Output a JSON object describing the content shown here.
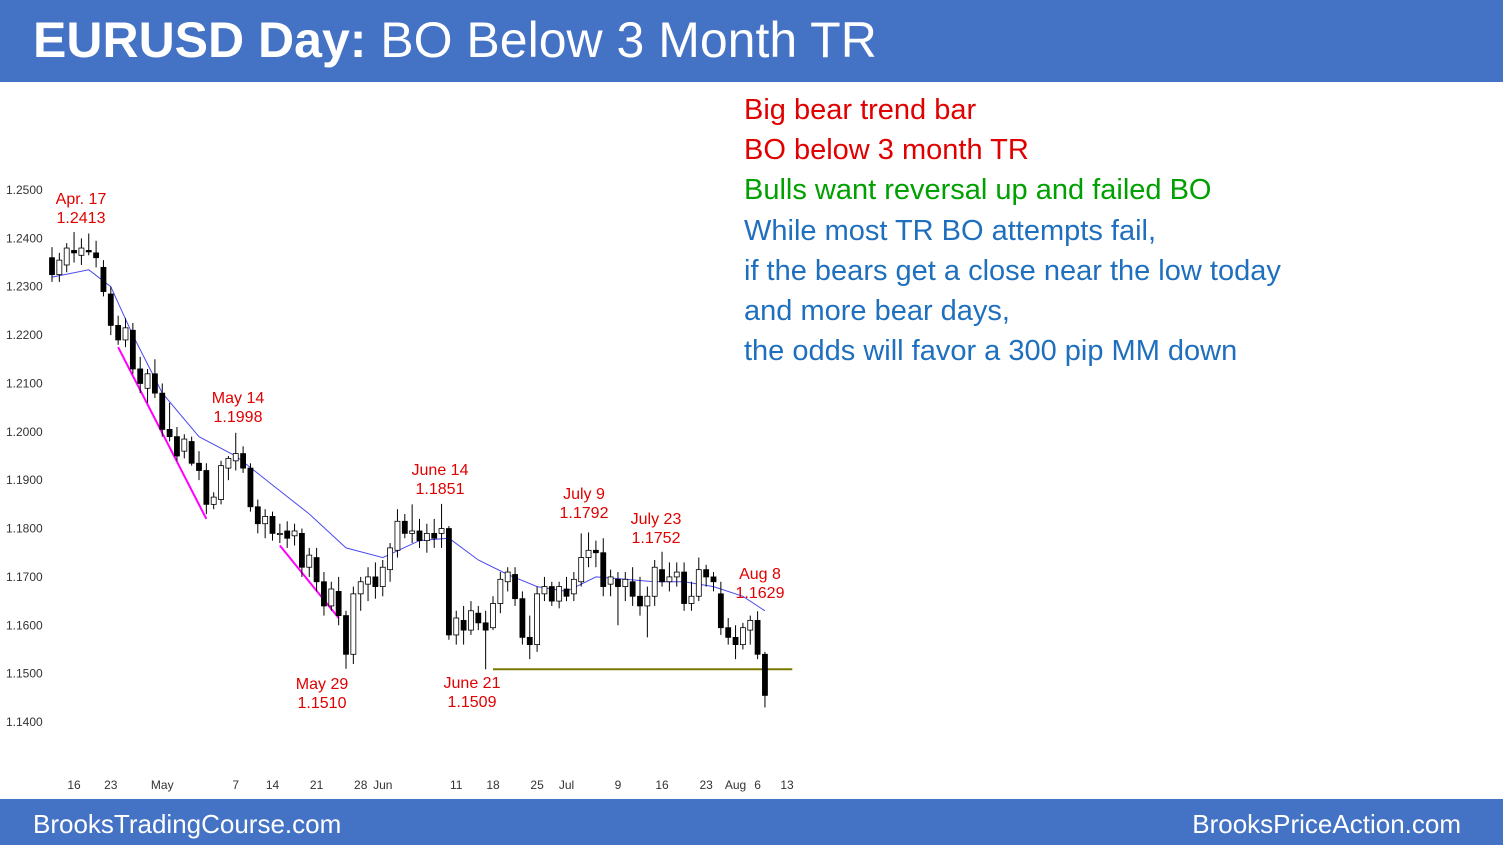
{
  "header": {
    "title_bold": "EURUSD Day:",
    "title_rest": " BO Below 3 Month TR"
  },
  "footer": {
    "left": "BrooksTradingCourse.com",
    "right": "BrooksPriceAction.com"
  },
  "notes": [
    {
      "text": "Big bear trend bar",
      "color": "#e00000"
    },
    {
      "text": "BO below 3 month TR",
      "color": "#e00000"
    },
    {
      "text": "Bulls want reversal up and failed BO",
      "color": "#00a000"
    },
    {
      "text": "While most TR BO attempts fail,",
      "color": "#1f6fbf"
    },
    {
      "text": "if the bears get a close near the low today",
      "color": "#1f6fbf"
    },
    {
      "text": "and more bear days,",
      "color": "#1f6fbf"
    },
    {
      "text": "the odds will favor a 300 pip MM down",
      "color": "#1f6fbf"
    }
  ],
  "chart_data": {
    "type": "candlestick",
    "title": "EURUSD Day",
    "ylim": [
      1.14,
      1.25
    ],
    "y_ticks": [
      "1.2500",
      "1.2400",
      "1.2300",
      "1.2200",
      "1.2100",
      "1.2000",
      "1.1900",
      "1.1800",
      "1.1700",
      "1.1600",
      "1.1500",
      "1.1400"
    ],
    "x_ticks": [
      "16",
      "23",
      "May",
      "7",
      "14",
      "21",
      "28",
      "Jun",
      "11",
      "18",
      "25",
      "Jul",
      "9",
      "16",
      "23",
      "Aug",
      "6",
      "13"
    ],
    "colors": {
      "bull_fill": "#ffffff",
      "bear_fill": "#000000",
      "ema": "#4a4af0",
      "trendline": "#ff00ff",
      "support": "#7a7a00",
      "annotation": "#e00000"
    },
    "candles": [
      [
        1.236,
        1.2382,
        1.231,
        1.2325
      ],
      [
        1.2325,
        1.237,
        1.231,
        1.2355
      ],
      [
        1.2345,
        1.239,
        1.233,
        1.238
      ],
      [
        1.2375,
        1.2413,
        1.235,
        1.237
      ],
      [
        1.2365,
        1.24,
        1.2345,
        1.238
      ],
      [
        1.2375,
        1.241,
        1.2365,
        1.2372
      ],
      [
        1.237,
        1.2395,
        1.234,
        1.236
      ],
      [
        1.234,
        1.2355,
        1.228,
        1.229
      ],
      [
        1.2285,
        1.23,
        1.22,
        1.222
      ],
      [
        1.222,
        1.224,
        1.218,
        1.219
      ],
      [
        1.219,
        1.2235,
        1.2175,
        1.2215
      ],
      [
        1.221,
        1.2225,
        1.212,
        1.213
      ],
      [
        1.213,
        1.2155,
        1.208,
        1.21
      ],
      [
        1.209,
        1.213,
        1.206,
        1.212
      ],
      [
        1.212,
        1.215,
        1.207,
        1.208
      ],
      [
        1.208,
        1.21,
        1.199,
        1.2005
      ],
      [
        1.2005,
        1.206,
        1.198,
        1.199
      ],
      [
        1.199,
        1.201,
        1.194,
        1.195
      ],
      [
        1.196,
        1.1995,
        1.1945,
        1.1985
      ],
      [
        1.198,
        1.199,
        1.193,
        1.1935
      ],
      [
        1.1935,
        1.196,
        1.19,
        1.192
      ],
      [
        1.192,
        1.1935,
        1.183,
        1.185
      ],
      [
        1.185,
        1.1875,
        1.184,
        1.1865
      ],
      [
        1.186,
        1.194,
        1.185,
        1.193
      ],
      [
        1.1925,
        1.195,
        1.19,
        1.1945
      ],
      [
        1.194,
        1.1998,
        1.192,
        1.1955
      ],
      [
        1.1955,
        1.197,
        1.1915,
        1.1925
      ],
      [
        1.1925,
        1.1935,
        1.1835,
        1.1845
      ],
      [
        1.1845,
        1.186,
        1.179,
        1.181
      ],
      [
        1.181,
        1.184,
        1.178,
        1.1825
      ],
      [
        1.1825,
        1.1835,
        1.1775,
        1.179
      ],
      [
        1.179,
        1.181,
        1.177,
        1.179
      ],
      [
        1.1795,
        1.1815,
        1.176,
        1.178
      ],
      [
        1.1785,
        1.181,
        1.1765,
        1.1795
      ],
      [
        1.179,
        1.18,
        1.17,
        1.172
      ],
      [
        1.172,
        1.176,
        1.17,
        1.1745
      ],
      [
        1.174,
        1.176,
        1.167,
        1.169
      ],
      [
        1.169,
        1.171,
        1.162,
        1.164
      ],
      [
        1.164,
        1.169,
        1.163,
        1.1675
      ],
      [
        1.167,
        1.17,
        1.16,
        1.162
      ],
      [
        1.162,
        1.163,
        1.151,
        1.154
      ],
      [
        1.154,
        1.168,
        1.152,
        1.1665
      ],
      [
        1.1665,
        1.17,
        1.163,
        1.169
      ],
      [
        1.1685,
        1.172,
        1.165,
        1.17
      ],
      [
        1.17,
        1.173,
        1.1655,
        1.168
      ],
      [
        1.168,
        1.1735,
        1.166,
        1.172
      ],
      [
        1.1715,
        1.177,
        1.169,
        1.176
      ],
      [
        1.1755,
        1.184,
        1.174,
        1.1815
      ],
      [
        1.1815,
        1.183,
        1.178,
        1.179
      ],
      [
        1.179,
        1.185,
        1.177,
        1.1795
      ],
      [
        1.1795,
        1.182,
        1.176,
        1.1775
      ],
      [
        1.1775,
        1.181,
        1.175,
        1.179
      ],
      [
        1.179,
        1.182,
        1.176,
        1.178
      ],
      [
        1.179,
        1.1851,
        1.176,
        1.18
      ],
      [
        1.18,
        1.1805,
        1.157,
        1.158
      ],
      [
        1.158,
        1.163,
        1.156,
        1.1615
      ],
      [
        1.161,
        1.164,
        1.156,
        1.159
      ],
      [
        1.159,
        1.165,
        1.158,
        1.163
      ],
      [
        1.1625,
        1.164,
        1.159,
        1.1605
      ],
      [
        1.1605,
        1.163,
        1.1509,
        1.159
      ],
      [
        1.1595,
        1.166,
        1.159,
        1.1645
      ],
      [
        1.1645,
        1.171,
        1.1625,
        1.1695
      ],
      [
        1.169,
        1.172,
        1.167,
        1.171
      ],
      [
        1.1705,
        1.172,
        1.164,
        1.1655
      ],
      [
        1.1655,
        1.167,
        1.156,
        1.1575
      ],
      [
        1.1575,
        1.162,
        1.153,
        1.156
      ],
      [
        1.156,
        1.168,
        1.1545,
        1.1665
      ],
      [
        1.1665,
        1.17,
        1.165,
        1.168
      ],
      [
        1.168,
        1.169,
        1.164,
        1.165
      ],
      [
        1.165,
        1.169,
        1.1635,
        1.168
      ],
      [
        1.1675,
        1.17,
        1.165,
        1.166
      ],
      [
        1.1665,
        1.171,
        1.165,
        1.1695
      ],
      [
        1.169,
        1.179,
        1.168,
        1.174
      ],
      [
        1.174,
        1.1792,
        1.172,
        1.1755
      ],
      [
        1.1755,
        1.1775,
        1.172,
        1.175
      ],
      [
        1.175,
        1.178,
        1.166,
        1.168
      ],
      [
        1.1685,
        1.1715,
        1.166,
        1.17
      ],
      [
        1.1695,
        1.171,
        1.16,
        1.168
      ],
      [
        1.168,
        1.171,
        1.165,
        1.1695
      ],
      [
        1.169,
        1.172,
        1.164,
        1.166
      ],
      [
        1.166,
        1.17,
        1.162,
        1.164
      ],
      [
        1.164,
        1.168,
        1.1575,
        1.166
      ],
      [
        1.166,
        1.1735,
        1.164,
        1.172
      ],
      [
        1.1715,
        1.1752,
        1.168,
        1.169
      ],
      [
        1.169,
        1.173,
        1.167,
        1.17
      ],
      [
        1.17,
        1.173,
        1.168,
        1.171
      ],
      [
        1.171,
        1.173,
        1.163,
        1.1645
      ],
      [
        1.1645,
        1.169,
        1.163,
        1.166
      ],
      [
        1.166,
        1.174,
        1.165,
        1.1715
      ],
      [
        1.1715,
        1.1725,
        1.168,
        1.17
      ],
      [
        1.17,
        1.171,
        1.167,
        1.169
      ],
      [
        1.1665,
        1.169,
        1.158,
        1.1595
      ],
      [
        1.1595,
        1.1615,
        1.156,
        1.1575
      ],
      [
        1.1575,
        1.16,
        1.153,
        1.156
      ],
      [
        1.156,
        1.1605,
        1.155,
        1.1595
      ],
      [
        1.159,
        1.162,
        1.156,
        1.161
      ],
      [
        1.161,
        1.1629,
        1.153,
        1.154
      ],
      [
        1.154,
        1.1545,
        1.143,
        1.1455
      ]
    ],
    "ema": [
      [
        0,
        1.232
      ],
      [
        5,
        1.2335
      ],
      [
        8,
        1.23
      ],
      [
        11,
        1.22
      ],
      [
        15,
        1.208
      ],
      [
        20,
        1.199
      ],
      [
        25,
        1.195
      ],
      [
        30,
        1.189
      ],
      [
        35,
        1.183
      ],
      [
        40,
        1.176
      ],
      [
        45,
        1.174
      ],
      [
        50,
        1.1775
      ],
      [
        54,
        1.178
      ],
      [
        58,
        1.1735
      ],
      [
        62,
        1.1705
      ],
      [
        66,
        1.168
      ],
      [
        70,
        1.167
      ],
      [
        74,
        1.17
      ],
      [
        78,
        1.1695
      ],
      [
        82,
        1.169
      ],
      [
        86,
        1.169
      ],
      [
        90,
        1.168
      ],
      [
        94,
        1.166
      ],
      [
        97,
        1.163
      ]
    ],
    "trendlines": [
      {
        "from": [
          9,
          1.2175
        ],
        "to": [
          21,
          1.182
        ]
      },
      {
        "from": [
          31,
          1.1765
        ],
        "to": [
          39,
          1.1615
        ]
      }
    ],
    "support": {
      "from": [
        60,
        1.1509
      ],
      "to": [
        98,
        1.1509
      ]
    },
    "annotations": [
      {
        "lines": [
          "Apr. 17",
          "1.2413"
        ],
        "date": "Apr. 17",
        "price": 1.2413,
        "placement": "above high"
      },
      {
        "lines": [
          "May 14",
          "1.1998"
        ],
        "date": "May 14",
        "price": 1.1998,
        "placement": "above high"
      },
      {
        "lines": [
          "June 14",
          "1.1851"
        ],
        "date": "June 14",
        "price": 1.1851,
        "placement": "above high"
      },
      {
        "lines": [
          "July 9",
          "1.1792"
        ],
        "date": "July 9",
        "price": 1.1792,
        "placement": "above high"
      },
      {
        "lines": [
          "July 23",
          "1.1752"
        ],
        "date": "July 23",
        "price": 1.1752,
        "placement": "above high"
      },
      {
        "lines": [
          "Aug 8",
          "1.1629"
        ],
        "date": "Aug 8",
        "price": 1.1629,
        "placement": "above high"
      },
      {
        "lines": [
          "May 29",
          "1.1510"
        ],
        "date": "May 29",
        "price": 1.151,
        "placement": "below low"
      },
      {
        "lines": [
          "June 21",
          "1.1509"
        ],
        "date": "June 21",
        "price": 1.1509,
        "placement": "below low"
      }
    ]
  }
}
